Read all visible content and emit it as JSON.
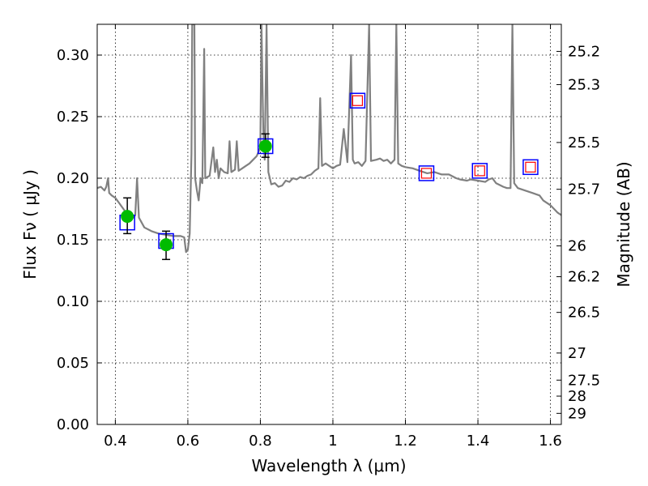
{
  "chart_data": {
    "type": "scatter",
    "title": "",
    "xlabel": "Wavelength  λ (μm)",
    "ylabel": "Flux  Fν  ( μJy )",
    "y2label": "Magnitude (AB)",
    "xlim": [
      0.35,
      1.63
    ],
    "ylim": [
      0.0,
      0.325
    ],
    "grid": true,
    "xticks": [
      {
        "value": 0.4,
        "label": "0.4"
      },
      {
        "value": 0.6,
        "label": "0.6"
      },
      {
        "value": 0.8,
        "label": "0.8"
      },
      {
        "value": 1.0,
        "label": "1"
      },
      {
        "value": 1.2,
        "label": "1.2"
      },
      {
        "value": 1.4,
        "label": "1.4"
      },
      {
        "value": 1.6,
        "label": "1.6"
      }
    ],
    "yticks": [
      {
        "value": 0.0,
        "label": "0.00"
      },
      {
        "value": 0.05,
        "label": "0.05"
      },
      {
        "value": 0.1,
        "label": "0.10"
      },
      {
        "value": 0.15,
        "label": "0.15"
      },
      {
        "value": 0.2,
        "label": "0.20"
      },
      {
        "value": 0.25,
        "label": "0.25"
      },
      {
        "value": 0.3,
        "label": "0.30"
      }
    ],
    "mag_ticks": [
      {
        "flux": 0.303,
        "label": "25.2"
      },
      {
        "flux": 0.276,
        "label": "25.3"
      },
      {
        "flux": 0.229,
        "label": "25.5"
      },
      {
        "flux": 0.191,
        "label": "25.7"
      },
      {
        "flux": 0.145,
        "label": "26"
      },
      {
        "flux": 0.12,
        "label": "26.2"
      },
      {
        "flux": 0.091,
        "label": "26.5"
      },
      {
        "flux": 0.058,
        "label": "27"
      },
      {
        "flux": 0.036,
        "label": "27.5"
      },
      {
        "flux": 0.023,
        "label": "28"
      },
      {
        "flux": 0.009,
        "label": "29"
      }
    ],
    "series": [
      {
        "kind": "model_spectrum",
        "color": "#808080",
        "points": [
          [
            0.35,
            0.192
          ],
          [
            0.36,
            0.193
          ],
          [
            0.37,
            0.19
          ],
          [
            0.375,
            0.193
          ],
          [
            0.38,
            0.2
          ],
          [
            0.383,
            0.188
          ],
          [
            0.39,
            0.186
          ],
          [
            0.4,
            0.184
          ],
          [
            0.41,
            0.18
          ],
          [
            0.42,
            0.176
          ],
          [
            0.43,
            0.172
          ],
          [
            0.44,
            0.17
          ],
          [
            0.45,
            0.168
          ],
          [
            0.455,
            0.17
          ],
          [
            0.46,
            0.2
          ],
          [
            0.465,
            0.168
          ],
          [
            0.48,
            0.16
          ],
          [
            0.5,
            0.157
          ],
          [
            0.52,
            0.155
          ],
          [
            0.54,
            0.154
          ],
          [
            0.56,
            0.153
          ],
          [
            0.58,
            0.153
          ],
          [
            0.59,
            0.152
          ],
          [
            0.595,
            0.14
          ],
          [
            0.6,
            0.142
          ],
          [
            0.605,
            0.155
          ],
          [
            0.61,
            0.22
          ],
          [
            0.612,
            0.325
          ],
          [
            0.618,
            0.325
          ],
          [
            0.62,
            0.2
          ],
          [
            0.625,
            0.19
          ],
          [
            0.63,
            0.182
          ],
          [
            0.635,
            0.2
          ],
          [
            0.64,
            0.196
          ],
          [
            0.645,
            0.305
          ],
          [
            0.648,
            0.2
          ],
          [
            0.66,
            0.202
          ],
          [
            0.67,
            0.225
          ],
          [
            0.675,
            0.205
          ],
          [
            0.68,
            0.215
          ],
          [
            0.685,
            0.2
          ],
          [
            0.69,
            0.208
          ],
          [
            0.7,
            0.205
          ],
          [
            0.71,
            0.204
          ],
          [
            0.715,
            0.23
          ],
          [
            0.72,
            0.205
          ],
          [
            0.73,
            0.207
          ],
          [
            0.735,
            0.23
          ],
          [
            0.74,
            0.206
          ],
          [
            0.75,
            0.208
          ],
          [
            0.76,
            0.21
          ],
          [
            0.77,
            0.212
          ],
          [
            0.78,
            0.215
          ],
          [
            0.79,
            0.218
          ],
          [
            0.8,
            0.225
          ],
          [
            0.803,
            0.325
          ],
          [
            0.808,
            0.24
          ],
          [
            0.812,
            0.215
          ],
          [
            0.817,
            0.325
          ],
          [
            0.822,
            0.205
          ],
          [
            0.83,
            0.195
          ],
          [
            0.84,
            0.196
          ],
          [
            0.85,
            0.193
          ],
          [
            0.86,
            0.194
          ],
          [
            0.87,
            0.198
          ],
          [
            0.88,
            0.197
          ],
          [
            0.89,
            0.2
          ],
          [
            0.9,
            0.199
          ],
          [
            0.91,
            0.201
          ],
          [
            0.92,
            0.2
          ],
          [
            0.93,
            0.202
          ],
          [
            0.94,
            0.203
          ],
          [
            0.95,
            0.206
          ],
          [
            0.96,
            0.208
          ],
          [
            0.965,
            0.265
          ],
          [
            0.97,
            0.21
          ],
          [
            0.98,
            0.212
          ],
          [
            0.99,
            0.21
          ],
          [
            1.0,
            0.208
          ],
          [
            1.01,
            0.21
          ],
          [
            1.02,
            0.211
          ],
          [
            1.03,
            0.24
          ],
          [
            1.04,
            0.213
          ],
          [
            1.05,
            0.3
          ],
          [
            1.055,
            0.215
          ],
          [
            1.06,
            0.212
          ],
          [
            1.07,
            0.213
          ],
          [
            1.08,
            0.21
          ],
          [
            1.09,
            0.214
          ],
          [
            1.1,
            0.325
          ],
          [
            1.105,
            0.214
          ],
          [
            1.12,
            0.215
          ],
          [
            1.13,
            0.216
          ],
          [
            1.14,
            0.214
          ],
          [
            1.15,
            0.215
          ],
          [
            1.16,
            0.212
          ],
          [
            1.17,
            0.215
          ],
          [
            1.175,
            0.325
          ],
          [
            1.18,
            0.212
          ],
          [
            1.19,
            0.21
          ],
          [
            1.2,
            0.209
          ],
          [
            1.22,
            0.208
          ],
          [
            1.24,
            0.206
          ],
          [
            1.26,
            0.204
          ],
          [
            1.28,
            0.205
          ],
          [
            1.3,
            0.203
          ],
          [
            1.32,
            0.203
          ],
          [
            1.34,
            0.2
          ],
          [
            1.35,
            0.199
          ],
          [
            1.37,
            0.198
          ],
          [
            1.38,
            0.199
          ],
          [
            1.4,
            0.198
          ],
          [
            1.42,
            0.197
          ],
          [
            1.43,
            0.199
          ],
          [
            1.44,
            0.2
          ],
          [
            1.45,
            0.196
          ],
          [
            1.47,
            0.193
          ],
          [
            1.48,
            0.192
          ],
          [
            1.49,
            0.192
          ],
          [
            1.495,
            0.325
          ],
          [
            1.5,
            0.196
          ],
          [
            1.51,
            0.192
          ],
          [
            1.53,
            0.19
          ],
          [
            1.55,
            0.188
          ],
          [
            1.57,
            0.186
          ],
          [
            1.58,
            0.182
          ],
          [
            1.6,
            0.178
          ],
          [
            1.62,
            0.172
          ],
          [
            1.63,
            0.17
          ]
        ]
      },
      {
        "kind": "model_bandflux_open_square",
        "color": "#0000ff",
        "points": [
          [
            0.433,
            0.164
          ],
          [
            0.54,
            0.149
          ],
          [
            0.814,
            0.226
          ],
          [
            1.068,
            0.263
          ],
          [
            1.258,
            0.204
          ],
          [
            1.405,
            0.206
          ],
          [
            1.545,
            0.209
          ]
        ]
      },
      {
        "kind": "observed_upper_limit_open_square",
        "color": "#ff0000",
        "points": [
          [
            1.068,
            0.263
          ],
          [
            1.258,
            0.204
          ],
          [
            1.405,
            0.206
          ],
          [
            1.545,
            0.209
          ]
        ]
      },
      {
        "kind": "observed_detection",
        "color": "#00bb00",
        "points": [
          {
            "x": 0.433,
            "y": 0.169,
            "err_low": 0.155,
            "err_high": 0.184
          },
          {
            "x": 0.54,
            "y": 0.146,
            "err_low": 0.134,
            "err_high": 0.157
          },
          {
            "x": 0.814,
            "y": 0.226,
            "err_low": 0.217,
            "err_high": 0.236
          }
        ]
      }
    ]
  }
}
